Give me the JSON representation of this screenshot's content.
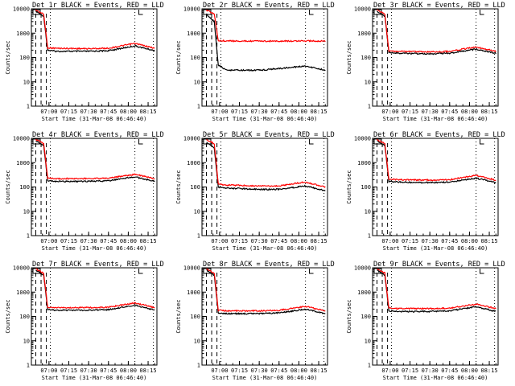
{
  "chart_data": [
    {
      "type": "line",
      "title": "Det 1r BLACK = Events, RED = LLD",
      "xlabel": "Start Time (31-Mar-08 06:46:40)",
      "ylabel": "Counts/sec",
      "x_ticks": [
        "07:00",
        "07:15",
        "07:30",
        "07:45",
        "08:00",
        "08:15"
      ],
      "y_ticks": [
        "1",
        "10",
        "100",
        "1000",
        "10000"
      ],
      "y_scale": "log",
      "ylim": [
        1,
        10000
      ],
      "series": [
        {
          "name": "BLACK = Events",
          "color": "#000000",
          "values": [
            {
              "t": "06:50",
              "y": 8000
            },
            {
              "t": "06:56",
              "y": 5000
            },
            {
              "t": "06:59",
              "y": 200
            },
            {
              "t": "07:05",
              "y": 180
            },
            {
              "t": "07:30",
              "y": 180
            },
            {
              "t": "07:45",
              "y": 190
            },
            {
              "t": "08:05",
              "y": 300
            },
            {
              "t": "08:20",
              "y": 190
            }
          ]
        },
        {
          "name": "RED = LLD",
          "color": "#ff0000",
          "values": [
            {
              "t": "06:50",
              "y": 9000
            },
            {
              "t": "06:56",
              "y": 6000
            },
            {
              "t": "06:59",
              "y": 250
            },
            {
              "t": "07:05",
              "y": 240
            },
            {
              "t": "07:30",
              "y": 230
            },
            {
              "t": "07:45",
              "y": 240
            },
            {
              "t": "08:05",
              "y": 380
            },
            {
              "t": "08:20",
              "y": 240
            }
          ]
        }
      ]
    },
    {
      "type": "line",
      "title": "Det 2r BLACK = Events, RED = LLD",
      "xlabel": "Start Time (31-Mar-08 06:46:40)",
      "ylabel": "Counts/sec",
      "x_ticks": [
        "07:00",
        "07:15",
        "07:30",
        "07:45",
        "08:00",
        "08:15"
      ],
      "y_ticks": [
        "1",
        "10",
        "100",
        "1000",
        "10000"
      ],
      "y_scale": "log",
      "ylim": [
        1,
        10000
      ],
      "series": [
        {
          "name": "BLACK = Events",
          "color": "#000000",
          "values": [
            {
              "t": "06:50",
              "y": 6000
            },
            {
              "t": "06:56",
              "y": 3000
            },
            {
              "t": "06:59",
              "y": 50
            },
            {
              "t": "07:05",
              "y": 30
            },
            {
              "t": "07:30",
              "y": 30
            },
            {
              "t": "07:45",
              "y": 35
            },
            {
              "t": "08:05",
              "y": 45
            },
            {
              "t": "08:20",
              "y": 30
            }
          ]
        },
        {
          "name": "RED = LLD",
          "color": "#ff0000",
          "values": [
            {
              "t": "06:50",
              "y": 9000
            },
            {
              "t": "06:56",
              "y": 6000
            },
            {
              "t": "06:59",
              "y": 500
            },
            {
              "t": "07:05",
              "y": 480
            },
            {
              "t": "07:30",
              "y": 470
            },
            {
              "t": "07:45",
              "y": 470
            },
            {
              "t": "08:05",
              "y": 480
            },
            {
              "t": "08:20",
              "y": 470
            }
          ]
        }
      ]
    },
    {
      "type": "line",
      "title": "Det 3r BLACK = Events, RED = LLD",
      "xlabel": "Start Time (31-Mar-08 06:46:40)",
      "ylabel": "Counts/sec",
      "x_ticks": [
        "07:00",
        "07:15",
        "07:30",
        "07:45",
        "08:00",
        "08:15"
      ],
      "y_ticks": [
        "1",
        "10",
        "100",
        "1000",
        "10000"
      ],
      "y_scale": "log",
      "ylim": [
        1,
        10000
      ],
      "series": [
        {
          "name": "BLACK = Events",
          "color": "#000000",
          "values": [
            {
              "t": "06:50",
              "y": 8000
            },
            {
              "t": "06:56",
              "y": 5000
            },
            {
              "t": "06:59",
              "y": 160
            },
            {
              "t": "07:05",
              "y": 150
            },
            {
              "t": "07:30",
              "y": 140
            },
            {
              "t": "07:45",
              "y": 150
            },
            {
              "t": "08:05",
              "y": 220
            },
            {
              "t": "08:20",
              "y": 150
            }
          ]
        },
        {
          "name": "RED = LLD",
          "color": "#ff0000",
          "values": [
            {
              "t": "06:50",
              "y": 9000
            },
            {
              "t": "06:56",
              "y": 6000
            },
            {
              "t": "06:59",
              "y": 190
            },
            {
              "t": "07:05",
              "y": 180
            },
            {
              "t": "07:30",
              "y": 170
            },
            {
              "t": "07:45",
              "y": 180
            },
            {
              "t": "08:05",
              "y": 270
            },
            {
              "t": "08:20",
              "y": 180
            }
          ]
        }
      ]
    },
    {
      "type": "line",
      "title": "Det 4r BLACK = Events, RED = LLD",
      "xlabel": "Start Time (31-Mar-08 06:46:40)",
      "ylabel": "Counts/sec",
      "x_ticks": [
        "07:00",
        "07:15",
        "07:30",
        "07:45",
        "08:00",
        "08:15"
      ],
      "y_ticks": [
        "1",
        "10",
        "100",
        "1000",
        "10000"
      ],
      "y_scale": "log",
      "ylim": [
        1,
        10000
      ],
      "series": [
        {
          "name": "BLACK = Events",
          "color": "#000000",
          "values": [
            {
              "t": "06:50",
              "y": 8000
            },
            {
              "t": "06:56",
              "y": 5000
            },
            {
              "t": "06:59",
              "y": 180
            },
            {
              "t": "07:05",
              "y": 170
            },
            {
              "t": "07:30",
              "y": 170
            },
            {
              "t": "07:45",
              "y": 180
            },
            {
              "t": "08:05",
              "y": 260
            },
            {
              "t": "08:20",
              "y": 170
            }
          ]
        },
        {
          "name": "RED = LLD",
          "color": "#ff0000",
          "values": [
            {
              "t": "06:50",
              "y": 9000
            },
            {
              "t": "06:56",
              "y": 6000
            },
            {
              "t": "06:59",
              "y": 230
            },
            {
              "t": "07:05",
              "y": 220
            },
            {
              "t": "07:30",
              "y": 220
            },
            {
              "t": "07:45",
              "y": 230
            },
            {
              "t": "08:05",
              "y": 330
            },
            {
              "t": "08:20",
              "y": 220
            }
          ]
        }
      ]
    },
    {
      "type": "line",
      "title": "Det 5r BLACK = Events, RED = LLD",
      "xlabel": "Start Time (31-Mar-08 06:46:40)",
      "ylabel": "Counts/sec",
      "x_ticks": [
        "07:00",
        "07:15",
        "07:30",
        "07:45",
        "08:00",
        "08:15"
      ],
      "y_ticks": [
        "1",
        "10",
        "100",
        "1000",
        "10000"
      ],
      "y_scale": "log",
      "ylim": [
        1,
        10000
      ],
      "series": [
        {
          "name": "BLACK = Events",
          "color": "#000000",
          "values": [
            {
              "t": "06:50",
              "y": 7000
            },
            {
              "t": "06:56",
              "y": 4000
            },
            {
              "t": "06:59",
              "y": 100
            },
            {
              "t": "07:05",
              "y": 90
            },
            {
              "t": "07:30",
              "y": 80
            },
            {
              "t": "07:45",
              "y": 80
            },
            {
              "t": "08:05",
              "y": 110
            },
            {
              "t": "08:20",
              "y": 70
            }
          ]
        },
        {
          "name": "RED = LLD",
          "color": "#ff0000",
          "values": [
            {
              "t": "06:50",
              "y": 9000
            },
            {
              "t": "06:56",
              "y": 6000
            },
            {
              "t": "06:59",
              "y": 130
            },
            {
              "t": "07:05",
              "y": 120
            },
            {
              "t": "07:30",
              "y": 110
            },
            {
              "t": "07:45",
              "y": 110
            },
            {
              "t": "08:05",
              "y": 160
            },
            {
              "t": "08:20",
              "y": 100
            }
          ]
        }
      ]
    },
    {
      "type": "line",
      "title": "Det 6r BLACK = Events, RED = LLD",
      "xlabel": "Start Time (31-Mar-08 06:46:40)",
      "ylabel": "Counts/sec",
      "x_ticks": [
        "07:00",
        "07:15",
        "07:30",
        "07:45",
        "08:00",
        "08:15"
      ],
      "y_ticks": [
        "1",
        "10",
        "100",
        "1000",
        "10000"
      ],
      "y_scale": "log",
      "ylim": [
        1,
        10000
      ],
      "series": [
        {
          "name": "BLACK = Events",
          "color": "#000000",
          "values": [
            {
              "t": "06:50",
              "y": 8000
            },
            {
              "t": "06:56",
              "y": 5000
            },
            {
              "t": "06:59",
              "y": 170
            },
            {
              "t": "07:05",
              "y": 160
            },
            {
              "t": "07:30",
              "y": 150
            },
            {
              "t": "07:45",
              "y": 160
            },
            {
              "t": "08:05",
              "y": 230
            },
            {
              "t": "08:20",
              "y": 150
            }
          ]
        },
        {
          "name": "RED = LLD",
          "color": "#ff0000",
          "values": [
            {
              "t": "06:50",
              "y": 9000
            },
            {
              "t": "06:56",
              "y": 6000
            },
            {
              "t": "06:59",
              "y": 210
            },
            {
              "t": "07:05",
              "y": 200
            },
            {
              "t": "07:30",
              "y": 190
            },
            {
              "t": "07:45",
              "y": 200
            },
            {
              "t": "08:05",
              "y": 300
            },
            {
              "t": "08:20",
              "y": 190
            }
          ]
        }
      ]
    },
    {
      "type": "line",
      "title": "Det 7r BLACK = Events, RED = LLD",
      "xlabel": "Start Time (31-Mar-08 06:46:40)",
      "ylabel": "Counts/sec",
      "x_ticks": [
        "07:00",
        "07:15",
        "07:30",
        "07:45",
        "08:00",
        "08:15"
      ],
      "y_ticks": [
        "1",
        "10",
        "100",
        "1000",
        "10000"
      ],
      "y_scale": "log",
      "ylim": [
        1,
        10000
      ],
      "series": [
        {
          "name": "BLACK = Events",
          "color": "#000000",
          "values": [
            {
              "t": "06:50",
              "y": 8000
            },
            {
              "t": "06:56",
              "y": 5000
            },
            {
              "t": "06:59",
              "y": 190
            },
            {
              "t": "07:05",
              "y": 180
            },
            {
              "t": "07:30",
              "y": 180
            },
            {
              "t": "07:45",
              "y": 190
            },
            {
              "t": "08:05",
              "y": 290
            },
            {
              "t": "08:20",
              "y": 180
            }
          ]
        },
        {
          "name": "RED = LLD",
          "color": "#ff0000",
          "values": [
            {
              "t": "06:50",
              "y": 9000
            },
            {
              "t": "06:56",
              "y": 6000
            },
            {
              "t": "06:59",
              "y": 240
            },
            {
              "t": "07:05",
              "y": 230
            },
            {
              "t": "07:30",
              "y": 230
            },
            {
              "t": "07:45",
              "y": 240
            },
            {
              "t": "08:05",
              "y": 360
            },
            {
              "t": "08:20",
              "y": 230
            }
          ]
        }
      ]
    },
    {
      "type": "line",
      "title": "Det 8r BLACK = Events, RED = LLD",
      "xlabel": "Start Time (31-Mar-08 06:46:40)",
      "ylabel": "Counts/sec",
      "x_ticks": [
        "07:00",
        "07:15",
        "07:30",
        "07:45",
        "08:00",
        "08:15"
      ],
      "y_ticks": [
        "1",
        "10",
        "100",
        "1000",
        "10000"
      ],
      "y_scale": "log",
      "ylim": [
        1,
        10000
      ],
      "series": [
        {
          "name": "BLACK = Events",
          "color": "#000000",
          "values": [
            {
              "t": "06:50",
              "y": 8000
            },
            {
              "t": "06:56",
              "y": 5000
            },
            {
              "t": "06:59",
              "y": 140
            },
            {
              "t": "07:05",
              "y": 130
            },
            {
              "t": "07:30",
              "y": 130
            },
            {
              "t": "07:45",
              "y": 140
            },
            {
              "t": "08:05",
              "y": 200
            },
            {
              "t": "08:20",
              "y": 130
            }
          ]
        },
        {
          "name": "RED = LLD",
          "color": "#ff0000",
          "values": [
            {
              "t": "06:50",
              "y": 9000
            },
            {
              "t": "06:56",
              "y": 6000
            },
            {
              "t": "06:59",
              "y": 180
            },
            {
              "t": "07:05",
              "y": 170
            },
            {
              "t": "07:30",
              "y": 170
            },
            {
              "t": "07:45",
              "y": 180
            },
            {
              "t": "08:05",
              "y": 260
            },
            {
              "t": "08:20",
              "y": 170
            }
          ]
        }
      ]
    },
    {
      "type": "line",
      "title": "Det 9r BLACK = Events, RED = LLD",
      "xlabel": "Start Time (31-Mar-08 06:46:40)",
      "ylabel": "Counts/sec",
      "x_ticks": [
        "07:00",
        "07:15",
        "07:30",
        "07:45",
        "08:00",
        "08:15"
      ],
      "y_ticks": [
        "1",
        "10",
        "100",
        "1000",
        "10000"
      ],
      "y_scale": "log",
      "ylim": [
        1,
        10000
      ],
      "series": [
        {
          "name": "BLACK = Events",
          "color": "#000000",
          "values": [
            {
              "t": "06:50",
              "y": 8000
            },
            {
              "t": "06:56",
              "y": 5000
            },
            {
              "t": "06:59",
              "y": 170
            },
            {
              "t": "07:05",
              "y": 160
            },
            {
              "t": "07:30",
              "y": 160
            },
            {
              "t": "07:45",
              "y": 170
            },
            {
              "t": "08:05",
              "y": 250
            },
            {
              "t": "08:20",
              "y": 160
            }
          ]
        },
        {
          "name": "RED = LLD",
          "color": "#ff0000",
          "values": [
            {
              "t": "06:50",
              "y": 9000
            },
            {
              "t": "06:56",
              "y": 6000
            },
            {
              "t": "06:59",
              "y": 220
            },
            {
              "t": "07:05",
              "y": 210
            },
            {
              "t": "07:30",
              "y": 210
            },
            {
              "t": "07:45",
              "y": 220
            },
            {
              "t": "08:05",
              "y": 320
            },
            {
              "t": "08:20",
              "y": 210
            }
          ]
        }
      ]
    }
  ]
}
